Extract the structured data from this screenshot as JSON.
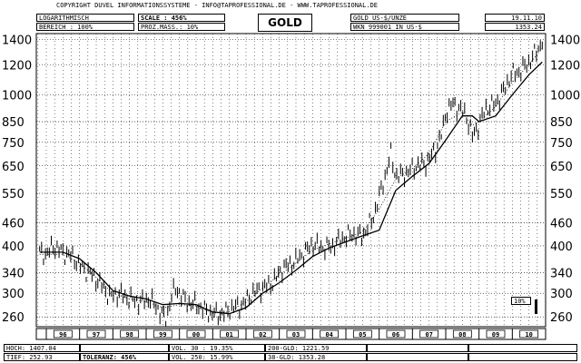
{
  "header": {
    "copyright": "COPYRIGHT   DUVEL INFORMATIONSSYSTEME  -  INFO@TAPROFESSIONAL.DE  -  WWW.TAPROFESSIONAL.DE",
    "scale_mode": "LOGARITHMISCH",
    "range": "BEREICH  :   100%",
    "scale_label": "SCALE :  456%",
    "pct_scale": "PROZ.MASS.:  10%",
    "title": "GOLD",
    "instrument": "GOLD US-$/UNZE",
    "date": "19.11.10",
    "wkn": "WKN 999001   IN US-$",
    "last_price": "1353.24"
  },
  "footer": {
    "high": "HOCH: 1407.04",
    "low": "TIEF:  252.93",
    "tolerance": "TOLERANZ:  456%",
    "vol30": "VOL. 30 :  19.35%",
    "vol250": "VOL. 250:  15.99%",
    "gld200": "200-GLD:  1221.59",
    "gld38": "38-GLD:  1353.28"
  },
  "scale_marker": "10%",
  "chart_data": {
    "type": "bar",
    "scale": "log",
    "ylim": [
      245,
      1450
    ],
    "ticks": [
      260,
      300,
      340,
      400,
      460,
      550,
      650,
      750,
      850,
      1000,
      1200,
      1400
    ],
    "xlim": [
      1995.7,
      2011.0
    ],
    "x_labels": [
      "96",
      "97",
      "98",
      "99",
      "00",
      "01",
      "02",
      "03",
      "04",
      "05",
      "06",
      "07",
      "08",
      "09",
      "10"
    ],
    "grid": true,
    "series": [
      {
        "kind": "price",
        "x": [
          1995.8,
          1996.0,
          1996.2,
          1996.5,
          1996.8,
          1997.0,
          1997.3,
          1997.6,
          1997.9,
          1998.2,
          1998.5,
          1998.8,
          1999.1,
          1999.4,
          1999.6,
          1999.75,
          1999.9,
          2000.2,
          2000.5,
          2000.8,
          2001.0,
          2001.3,
          2001.6,
          2001.9,
          2002.2,
          2002.5,
          2002.8,
          2003.1,
          2003.4,
          2003.7,
          2004.0,
          2004.3,
          2004.6,
          2004.9,
          2005.2,
          2005.5,
          2005.8,
          2006.0,
          2006.2,
          2006.35,
          2006.5,
          2006.8,
          2007.1,
          2007.4,
          2007.7,
          2007.9,
          2008.0,
          2008.2,
          2008.4,
          2008.6,
          2008.8,
          2008.95,
          2009.2,
          2009.5,
          2009.8,
          2009.95,
          2010.2,
          2010.5,
          2010.8,
          2010.9
        ],
        "y": [
          385,
          380,
          400,
          385,
          375,
          355,
          340,
          320,
          295,
          300,
          290,
          285,
          290,
          270,
          255,
          295,
          310,
          285,
          280,
          270,
          265,
          265,
          275,
          280,
          300,
          310,
          320,
          350,
          360,
          380,
          405,
          395,
          400,
          420,
          430,
          425,
          470,
          540,
          620,
          700,
          610,
          620,
          650,
          660,
          720,
          800,
          900,
          950,
          920,
          890,
          780,
          820,
          920,
          950,
          1050,
          1130,
          1150,
          1220,
          1330,
          1390
        ]
      },
      {
        "kind": "ma200",
        "x": [
          1995.8,
          1996.5,
          1997.0,
          1997.5,
          1998.0,
          1998.5,
          1999.0,
          1999.5,
          2000.0,
          2000.5,
          2001.0,
          2001.5,
          2002.0,
          2002.5,
          2003.0,
          2003.5,
          2004.0,
          2004.5,
          2005.0,
          2005.5,
          2006.0,
          2006.5,
          2007.0,
          2007.5,
          2008.0,
          2008.5,
          2008.8,
          2009.0,
          2009.5,
          2010.0,
          2010.5,
          2010.9
        ],
        "y": [
          385,
          385,
          370,
          340,
          305,
          295,
          290,
          280,
          282,
          280,
          268,
          265,
          275,
          300,
          320,
          345,
          375,
          395,
          410,
          425,
          440,
          560,
          610,
          660,
          760,
          880,
          880,
          850,
          880,
          1000,
          1130,
          1220
        ]
      },
      {
        "kind": "ma38",
        "x": [
          1995.8,
          1996.5,
          1997.0,
          1997.5,
          1998.0,
          1998.5,
          1999.0,
          1999.5,
          2000.0,
          2000.5,
          2001.0,
          2001.5,
          2002.0,
          2002.5,
          2003.0,
          2003.5,
          2004.0,
          2004.5,
          2005.0,
          2005.5,
          2006.0,
          2006.5,
          2007.0,
          2007.5,
          2008.0,
          2008.5,
          2008.8,
          2009.0,
          2009.5,
          2010.0,
          2010.5,
          2010.9
        ],
        "y": [
          380,
          380,
          360,
          330,
          300,
          290,
          285,
          275,
          280,
          278,
          266,
          268,
          285,
          310,
          335,
          360,
          390,
          405,
          420,
          435,
          500,
          600,
          640,
          700,
          850,
          900,
          830,
          850,
          930,
          1080,
          1200,
          1330
        ]
      }
    ]
  }
}
